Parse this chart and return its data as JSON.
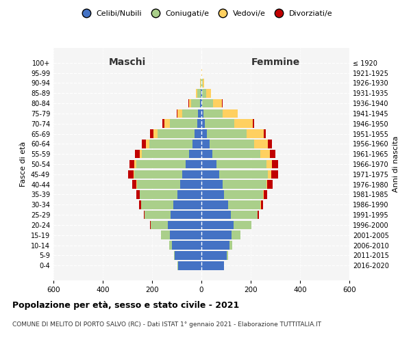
{
  "age_groups": [
    "0-4",
    "5-9",
    "10-14",
    "15-19",
    "20-24",
    "25-29",
    "30-34",
    "35-39",
    "40-44",
    "45-49",
    "50-54",
    "55-59",
    "60-64",
    "65-69",
    "70-74",
    "75-79",
    "80-84",
    "85-89",
    "90-94",
    "95-99",
    "100+"
  ],
  "birth_years": [
    "2016-2020",
    "2011-2015",
    "2006-2010",
    "2001-2005",
    "1996-2000",
    "1991-1995",
    "1986-1990",
    "1981-1985",
    "1976-1980",
    "1971-1975",
    "1966-1970",
    "1961-1965",
    "1956-1960",
    "1951-1955",
    "1946-1950",
    "1941-1945",
    "1936-1940",
    "1931-1935",
    "1926-1930",
    "1921-1925",
    "≤ 1920"
  ],
  "male": {
    "celibi": [
      95,
      108,
      120,
      128,
      135,
      125,
      115,
      96,
      87,
      77,
      65,
      51,
      37,
      27,
      18,
      14,
      6,
      3,
      1,
      0,
      0
    ],
    "coniugati": [
      1,
      3,
      10,
      35,
      70,
      105,
      130,
      155,
      175,
      195,
      200,
      190,
      175,
      150,
      110,
      65,
      35,
      15,
      3,
      1,
      0
    ],
    "vedovi": [
      0,
      0,
      0,
      0,
      0,
      0,
      0,
      0,
      1,
      3,
      6,
      10,
      14,
      18,
      22,
      18,
      10,
      4,
      1,
      0,
      0
    ],
    "divorziati": [
      0,
      0,
      0,
      0,
      2,
      4,
      8,
      12,
      18,
      22,
      20,
      18,
      15,
      12,
      8,
      3,
      1,
      0,
      0,
      0,
      0
    ]
  },
  "female": {
    "nubili": [
      92,
      104,
      115,
      122,
      130,
      120,
      108,
      92,
      85,
      72,
      60,
      45,
      32,
      22,
      14,
      8,
      4,
      2,
      1,
      0,
      0
    ],
    "coniugate": [
      1,
      3,
      10,
      36,
      72,
      108,
      132,
      158,
      178,
      198,
      205,
      195,
      182,
      160,
      120,
      78,
      42,
      18,
      4,
      1,
      0
    ],
    "vedove": [
      0,
      0,
      0,
      0,
      0,
      0,
      1,
      2,
      5,
      12,
      22,
      38,
      55,
      70,
      75,
      60,
      38,
      18,
      5,
      1,
      0
    ],
    "divorziate": [
      0,
      0,
      0,
      0,
      2,
      4,
      8,
      14,
      22,
      28,
      25,
      22,
      18,
      10,
      5,
      2,
      1,
      0,
      0,
      0,
      0
    ]
  },
  "colors": {
    "celibi_nubili": "#4472C4",
    "coniugati": "#AACF8A",
    "vedovi": "#FFD060",
    "divorziati": "#C00000"
  },
  "xlim": 600,
  "xticks": [
    -600,
    -400,
    -200,
    0,
    200,
    400,
    600
  ],
  "title": "Popolazione per età, sesso e stato civile - 2021",
  "subtitle": "COMUNE DI MELITO DI PORTO SALVO (RC) - Dati ISTAT 1° gennaio 2021 - Elaborazione TUTTITALIA.IT",
  "ylabel_left": "Fasce di età",
  "ylabel_right": "Anni di nascita",
  "label_maschi": "Maschi",
  "label_femmine": "Femmine",
  "legend_labels": [
    "Celibi/Nubili",
    "Coniugati/e",
    "Vedovi/e",
    "Divorziati/e"
  ],
  "bg_color": "#f5f5f5"
}
